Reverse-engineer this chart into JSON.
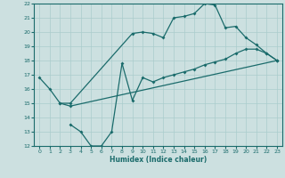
{
  "xlabel": "Humidex (Indice chaleur)",
  "xlim": [
    -0.5,
    23.5
  ],
  "ylim": [
    12,
    22
  ],
  "xticks": [
    0,
    1,
    2,
    3,
    4,
    5,
    6,
    7,
    8,
    9,
    10,
    11,
    12,
    13,
    14,
    15,
    16,
    17,
    18,
    19,
    20,
    21,
    22,
    23
  ],
  "yticks": [
    12,
    13,
    14,
    15,
    16,
    17,
    18,
    19,
    20,
    21,
    22
  ],
  "bg_color": "#cce0e0",
  "line_color": "#1a6b6b",
  "grid_color": "#aacccc",
  "line1_x": [
    0,
    1,
    2,
    3,
    9,
    10,
    11,
    12,
    13,
    14,
    15,
    16,
    17,
    18,
    19,
    20,
    21,
    22,
    23
  ],
  "line1_y": [
    16.8,
    16.0,
    15.0,
    15.0,
    19.9,
    20.0,
    19.9,
    19.6,
    21.0,
    21.1,
    21.3,
    22.0,
    21.9,
    20.3,
    20.4,
    19.6,
    19.1,
    18.5,
    18.0
  ],
  "line2_x": [
    2,
    3,
    23
  ],
  "line2_y": [
    15.0,
    14.8,
    18.0
  ],
  "line3_x": [
    3,
    4,
    5,
    6,
    7,
    8,
    9,
    10,
    11,
    12,
    13,
    14,
    15,
    16,
    17,
    18,
    19,
    20,
    21,
    22,
    23
  ],
  "line3_y": [
    13.5,
    13.0,
    12.0,
    12.0,
    13.0,
    17.8,
    15.2,
    16.8,
    16.5,
    16.8,
    17.0,
    17.2,
    17.4,
    17.7,
    17.9,
    18.1,
    18.5,
    18.8,
    18.8,
    18.5,
    18.0
  ]
}
